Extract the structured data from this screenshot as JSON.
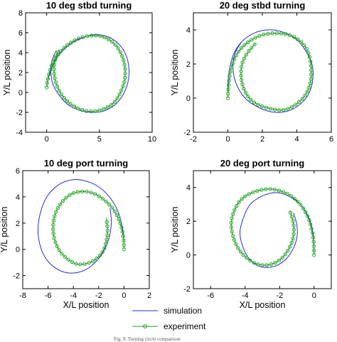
{
  "chart_data": [
    {
      "type": "line",
      "title": "10 deg stbd turning",
      "xlabel": "",
      "ylabel": "Y/L position",
      "xlim": [
        -2,
        10
      ],
      "ylim": [
        -4,
        8
      ],
      "xticks": [
        0,
        5,
        10
      ],
      "yticks": [
        -4,
        -2,
        0,
        2,
        4,
        6,
        8
      ],
      "series": [
        {
          "name": "simulation",
          "color": "#2b2bd6",
          "x": [
            0,
            0.1,
            0.5,
            1.2,
            2.2,
            3.4,
            4.6,
            5.8,
            6.8,
            7.5,
            7.8,
            7.7,
            7.2,
            6.4,
            5.3,
            4.2,
            3.1,
            2.0,
            1.2,
            0.6,
            0.4,
            0.5,
            0.9
          ],
          "y": [
            0.5,
            1.2,
            2.5,
            3.8,
            4.8,
            5.5,
            5.8,
            5.6,
            4.9,
            3.8,
            2.4,
            1.0,
            -0.3,
            -1.3,
            -1.9,
            -2.0,
            -1.8,
            -1.2,
            -0.3,
            0.8,
            2.0,
            3.2,
            4.2
          ]
        },
        {
          "name": "experiment",
          "color": "#1e9e1e",
          "x": [
            0,
            0.1,
            0.4,
            1.0,
            1.9,
            3.0,
            4.2,
            5.3,
            6.3,
            7.0,
            7.4,
            7.4,
            7.0,
            6.3,
            5.3,
            4.2,
            3.2,
            2.2,
            1.4,
            0.9,
            0.7,
            0.8,
            1.2
          ],
          "y": [
            0.5,
            1.3,
            2.5,
            3.7,
            4.7,
            5.4,
            5.7,
            5.6,
            5.0,
            4.0,
            2.7,
            1.3,
            0.0,
            -1.1,
            -1.7,
            -1.9,
            -1.7,
            -1.1,
            -0.2,
            0.9,
            2.1,
            3.3,
            4.3
          ]
        }
      ]
    },
    {
      "type": "line",
      "title": "20 deg stbd turning",
      "xlabel": "",
      "ylabel": "Y/L position",
      "xlim": [
        -2,
        6
      ],
      "ylim": [
        -2,
        5
      ],
      "xticks": [
        -2,
        0,
        2,
        4,
        6
      ],
      "yticks": [
        -2,
        0,
        2,
        4
      ],
      "series": [
        {
          "name": "simulation",
          "color": "#2b2bd6",
          "x": [
            0,
            0.05,
            0.3,
            0.8,
            1.5,
            2.3,
            3.1,
            3.9,
            4.5,
            4.9,
            4.9,
            4.6,
            4.0,
            3.3,
            2.5,
            1.7,
            1.0,
            0.5,
            0.3,
            0.4,
            0.8
          ],
          "y": [
            0.4,
            1.4,
            2.5,
            3.3,
            3.8,
            4.0,
            3.9,
            3.5,
            2.8,
            1.9,
            0.9,
            0.1,
            -0.5,
            -0.8,
            -0.8,
            -0.5,
            0.0,
            0.8,
            1.7,
            2.6,
            3.3
          ]
        },
        {
          "name": "experiment",
          "color": "#1e9e1e",
          "x": [
            0,
            0.05,
            0.2,
            0.6,
            1.2,
            2.0,
            2.9,
            3.8,
            4.5,
            4.8,
            4.8,
            4.5,
            3.9,
            3.2,
            2.4,
            1.6,
            1.1,
            0.8,
            0.8,
            1.1,
            1.6
          ],
          "y": [
            0.0,
            0.8,
            1.8,
            2.7,
            3.3,
            3.7,
            3.8,
            3.6,
            3.0,
            2.1,
            1.0,
            0.2,
            -0.4,
            -0.7,
            -0.6,
            -0.3,
            0.2,
            1.0,
            1.9,
            2.6,
            3.2
          ]
        }
      ]
    },
    {
      "type": "line",
      "title": "10 deg port turning",
      "xlabel": "X/L position",
      "ylabel": "Y/L position",
      "xlim": [
        -8,
        2
      ],
      "ylim": [
        -3,
        6
      ],
      "xticks": [
        -8,
        -6,
        -4,
        -2,
        0,
        2
      ],
      "yticks": [
        -2,
        0,
        2,
        4,
        6
      ],
      "series": [
        {
          "name": "simulation",
          "color": "#2b2bd6",
          "x": [
            0,
            -0.1,
            -0.4,
            -1.0,
            -1.9,
            -3.0,
            -4.1,
            -5.2,
            -6.1,
            -6.6,
            -6.8,
            -6.6,
            -6.1,
            -5.3,
            -4.4,
            -3.4,
            -2.5,
            -1.7,
            -1.2,
            -1.0,
            -1.1
          ],
          "y": [
            0.5,
            1.5,
            2.7,
            3.8,
            4.7,
            5.2,
            5.3,
            4.9,
            4.0,
            2.8,
            1.5,
            0.2,
            -0.8,
            -1.5,
            -1.8,
            -1.7,
            -1.2,
            -0.3,
            0.8,
            2.0,
            3.1
          ]
        },
        {
          "name": "experiment",
          "color": "#1e9e1e",
          "x": [
            0,
            -0.05,
            -0.3,
            -0.8,
            -1.6,
            -2.5,
            -3.4,
            -4.2,
            -4.9,
            -5.4,
            -5.6,
            -5.5,
            -5.1,
            -4.5,
            -3.8,
            -3.0,
            -2.3,
            -1.7,
            -1.4,
            -1.3,
            -1.4
          ],
          "y": [
            0.0,
            0.9,
            2.0,
            3.0,
            3.8,
            4.3,
            4.4,
            4.2,
            3.6,
            2.8,
            1.8,
            0.8,
            -0.1,
            -0.7,
            -1.1,
            -1.1,
            -0.8,
            -0.2,
            0.6,
            1.5,
            2.4
          ]
        }
      ]
    },
    {
      "type": "line",
      "title": "20 deg port turning",
      "xlabel": "X/L position",
      "ylabel": "Y/L position",
      "xlim": [
        -7,
        1
      ],
      "ylim": [
        -2,
        5
      ],
      "xticks": [
        -6,
        -4,
        -2,
        0
      ],
      "yticks": [
        -2,
        0,
        2,
        4
      ],
      "series": [
        {
          "name": "simulation",
          "color": "#2b2bd6",
          "x": [
            0,
            -0.05,
            -0.3,
            -0.8,
            -1.5,
            -2.2,
            -3.0,
            -3.7,
            -4.1,
            -4.3,
            -4.1,
            -3.7,
            -3.1,
            -2.4,
            -1.8,
            -1.3,
            -1.0,
            -1.0,
            -1.2
          ],
          "y": [
            0.2,
            1.2,
            2.2,
            3.0,
            3.5,
            3.7,
            3.5,
            3.0,
            2.2,
            1.3,
            0.4,
            -0.3,
            -0.7,
            -0.7,
            -0.4,
            0.2,
            1.0,
            1.8,
            2.5
          ]
        },
        {
          "name": "experiment",
          "color": "#1e9e1e",
          "x": [
            0,
            -0.05,
            -0.3,
            -0.8,
            -1.5,
            -2.4,
            -3.3,
            -4.1,
            -4.6,
            -4.8,
            -4.6,
            -4.1,
            -3.4,
            -2.7,
            -2.0,
            -1.5,
            -1.2,
            -1.2,
            -1.4
          ],
          "y": [
            0.0,
            1.0,
            2.1,
            3.0,
            3.6,
            3.9,
            3.8,
            3.4,
            2.7,
            1.8,
            0.8,
            0.0,
            -0.5,
            -0.6,
            -0.3,
            0.3,
            1.1,
            1.9,
            2.6
          ]
        }
      ]
    }
  ],
  "legend": {
    "items": [
      {
        "label": "simulation",
        "color": "#2b2bd6",
        "marker": false
      },
      {
        "label": "experiment",
        "color": "#1e9e1e",
        "marker": true
      }
    ],
    "placement": "bottom-center"
  },
  "caption": "Fig. 9. Turning circle comparison"
}
